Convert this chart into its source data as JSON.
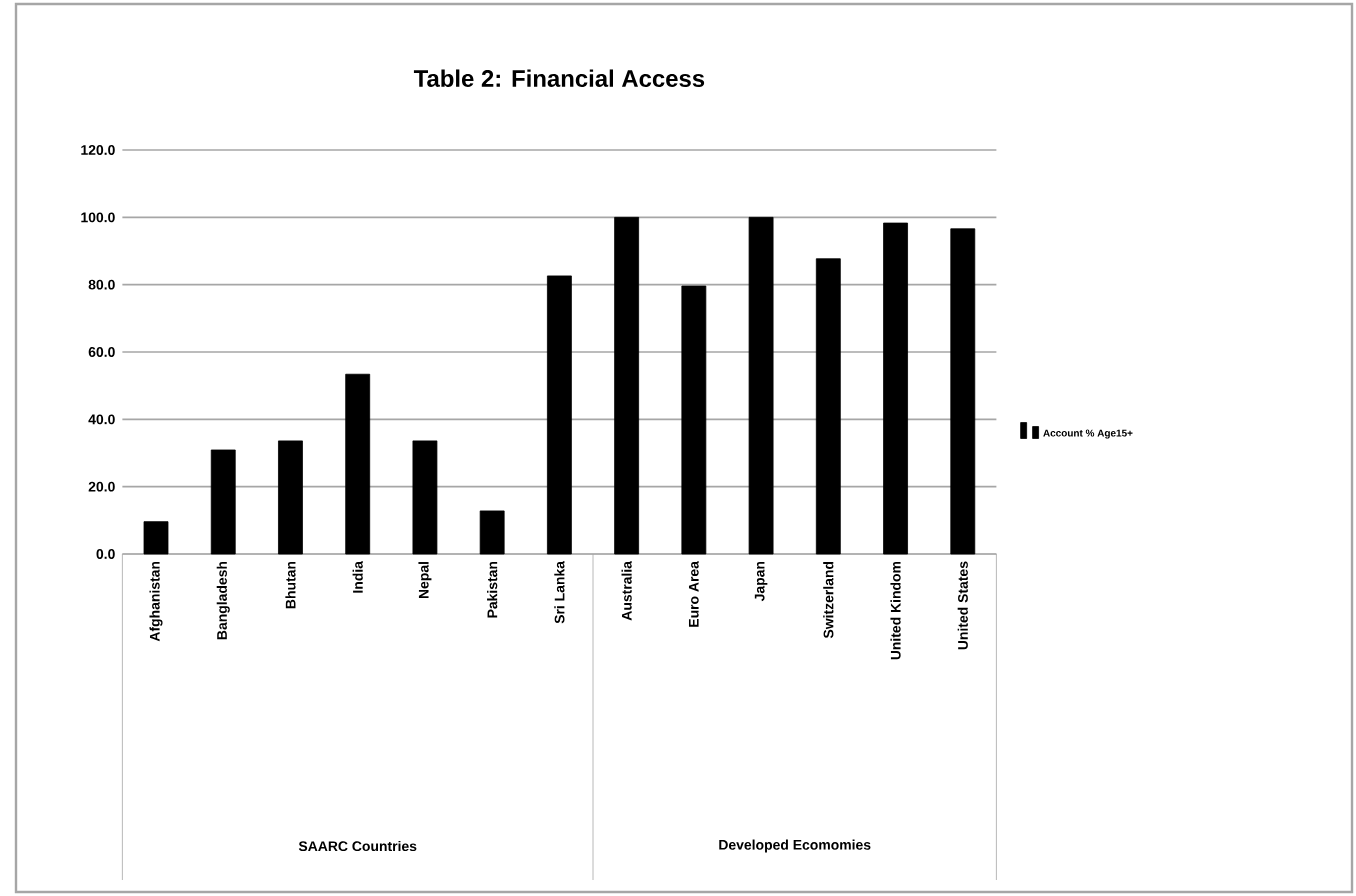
{
  "chart_data": {
    "type": "bar",
    "title": "Table 2: Financial Access",
    "categories": [
      "Afghanistan",
      "Bangladesh",
      "Bhutan",
      "India",
      "Nepal",
      "Pakistan",
      "Sri Lanka",
      "Australia",
      "Euro Area",
      "Japan",
      "Switzerland",
      "United Kindom",
      "United States"
    ],
    "series": [
      {
        "name": "Account % Age15+",
        "color": "#000000",
        "values": [
          9.6,
          30.9,
          33.6,
          53.4,
          33.6,
          12.8,
          82.6,
          100,
          79.6,
          100,
          87.7,
          98.3,
          96.6
        ]
      }
    ],
    "ylim": [
      0,
      120
    ],
    "yticks": [
      {
        "value": 0,
        "label": "0.0"
      },
      {
        "value": 20,
        "label": "20.0"
      },
      {
        "value": 40,
        "label": "40.0"
      },
      {
        "value": 60,
        "label": "60.0"
      },
      {
        "value": 80,
        "label": "80.0"
      },
      {
        "value": 100,
        "label": "100.0"
      },
      {
        "value": 120,
        "label": "120.0"
      }
    ],
    "annotations": [
      "SAARC Countries",
      "Developed Ecomomies"
    ],
    "grid": "y",
    "legend": "right"
  }
}
